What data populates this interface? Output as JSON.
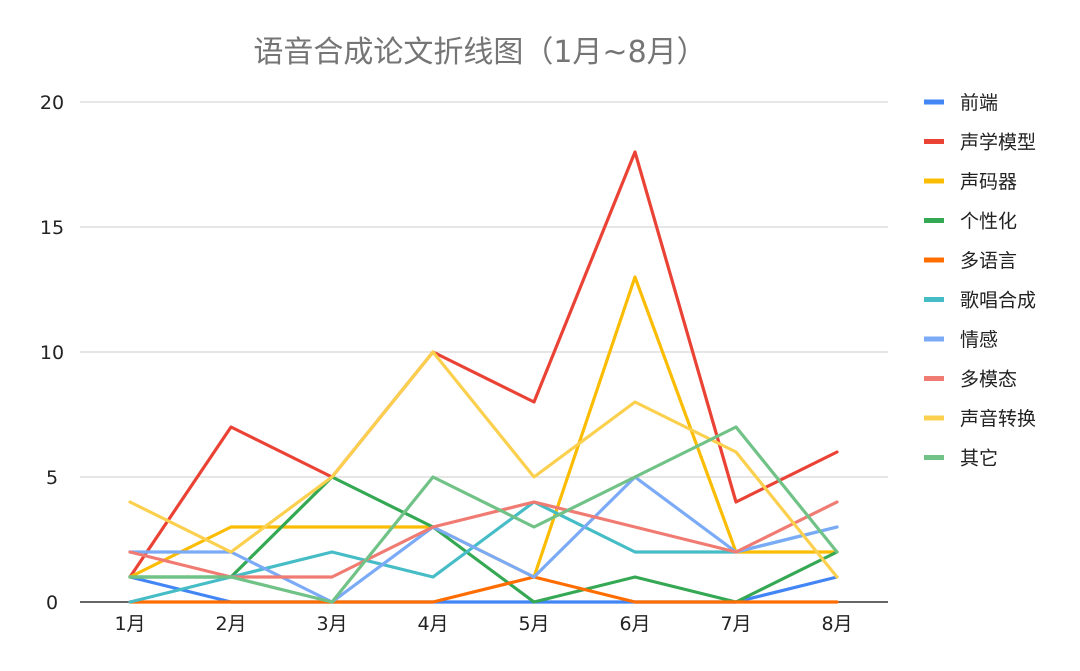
{
  "chart_data": {
    "type": "line",
    "title": "语音合成论文折线图（1月~8月）",
    "xlabel": "",
    "ylabel": "",
    "categories": [
      "1月",
      "2月",
      "3月",
      "4月",
      "5月",
      "6月",
      "7月",
      "8月"
    ],
    "ylim": [
      0,
      20
    ],
    "yticks": [
      0,
      5,
      10,
      15,
      20
    ],
    "grid": true,
    "legend_position": "right",
    "series": [
      {
        "name": "前端",
        "color": "#4285F4",
        "values": [
          1,
          0,
          0,
          0,
          0,
          0,
          0,
          1
        ]
      },
      {
        "name": "声学模型",
        "color": "#EA4335",
        "values": [
          1,
          7,
          5,
          10,
          8,
          18,
          4,
          6
        ]
      },
      {
        "name": "声码器",
        "color": "#FBBC04",
        "values": [
          1,
          3,
          3,
          3,
          1,
          13,
          2,
          2
        ]
      },
      {
        "name": "个性化",
        "color": "#34A853",
        "values": [
          1,
          1,
          5,
          3,
          0,
          1,
          0,
          2
        ]
      },
      {
        "name": "多语言",
        "color": "#FF6D01",
        "values": [
          0,
          0,
          0,
          0,
          1,
          0,
          0,
          0
        ]
      },
      {
        "name": "歌唱合成",
        "color": "#46BDC6",
        "values": [
          0,
          1,
          2,
          1,
          4,
          2,
          2,
          3
        ]
      },
      {
        "name": "情感",
        "color": "#7BAAF7",
        "values": [
          2,
          2,
          0,
          3,
          1,
          5,
          2,
          3
        ]
      },
      {
        "name": "多模态",
        "color": "#F07B72",
        "values": [
          2,
          1,
          1,
          3,
          4,
          3,
          2,
          4
        ]
      },
      {
        "name": "声音转换",
        "color": "#FCD04F",
        "values": [
          4,
          2,
          5,
          10,
          5,
          8,
          6,
          1
        ]
      },
      {
        "name": "其它",
        "color": "#71C287",
        "values": [
          1,
          1,
          0,
          5,
          3,
          5,
          7,
          2
        ]
      }
    ]
  }
}
